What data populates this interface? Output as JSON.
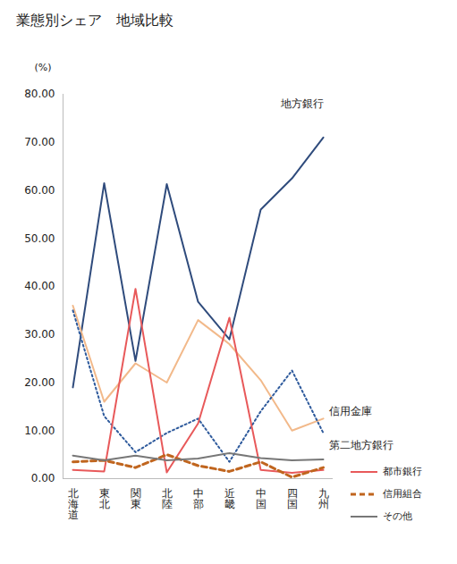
{
  "chart_data": {
    "type": "line",
    "title": "業態別シェア　地域比較",
    "y_label": "(%)",
    "categories": [
      "北海道",
      "東北",
      "関東",
      "北陸",
      "中部",
      "近畿",
      "中国",
      "四国",
      "九州"
    ],
    "ylim": [
      0,
      80
    ],
    "yticks": [
      {
        "value": 0,
        "label": "0.00"
      },
      {
        "value": 10,
        "label": "10.00"
      },
      {
        "value": 20,
        "label": "20.00"
      },
      {
        "value": 30,
        "label": "30.00"
      },
      {
        "value": 40,
        "label": "40.00"
      },
      {
        "value": 50,
        "label": "50.00"
      },
      {
        "value": 60,
        "label": "60.00"
      },
      {
        "value": 70,
        "label": "70.00"
      },
      {
        "value": 80,
        "label": "80.00"
      }
    ],
    "grid": false,
    "legend": "right",
    "series": [
      {
        "name": "地方銀行",
        "color": "#2f4b7c",
        "line_style": "solid",
        "values": [
          19,
          61.5,
          24.5,
          61.3,
          36.8,
          29,
          56,
          62.5,
          71
        ]
      },
      {
        "name": "信用金庫",
        "color": "#f2b98a",
        "line_style": "solid",
        "values": [
          36,
          16,
          24,
          20,
          33,
          28,
          20.5,
          10,
          12.5
        ]
      },
      {
        "name": "第二地方銀行",
        "color": "#2e5a9c",
        "line_style": "dotted",
        "values": [
          35,
          13,
          5.5,
          9.5,
          12.5,
          3.5,
          14,
          22.5,
          9.5
        ]
      },
      {
        "name": "都市銀行",
        "color": "#e8595a",
        "line_style": "solid",
        "values": [
          1.8,
          1.5,
          39.5,
          1.3,
          11.5,
          33.5,
          1.8,
          1.2,
          1.8
        ]
      },
      {
        "name": "信用組合",
        "color": "#c0651e",
        "line_style": "dashed",
        "values": [
          3.5,
          3.8,
          2.3,
          5,
          2.7,
          1.5,
          3.5,
          0.3,
          2.3
        ]
      },
      {
        "name": "その他",
        "color": "#777777",
        "line_style": "solid",
        "values": [
          4.8,
          3.8,
          4.8,
          3.8,
          4.2,
          5.3,
          4.3,
          3.8,
          4
        ]
      }
    ]
  }
}
